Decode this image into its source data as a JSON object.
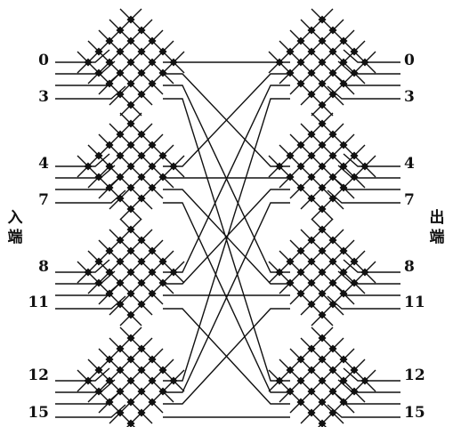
{
  "input_side_label": [
    "入",
    "端"
  ],
  "output_side_label": [
    "出",
    "端"
  ],
  "input_port_labels": [
    "0",
    "3",
    "4",
    "7",
    "8",
    "11",
    "12",
    "15"
  ],
  "output_port_labels": [
    "0",
    "3",
    "4",
    "7",
    "8",
    "11",
    "12",
    "15"
  ],
  "colors": {
    "ink": "#111111",
    "background": "#ffffff"
  }
}
